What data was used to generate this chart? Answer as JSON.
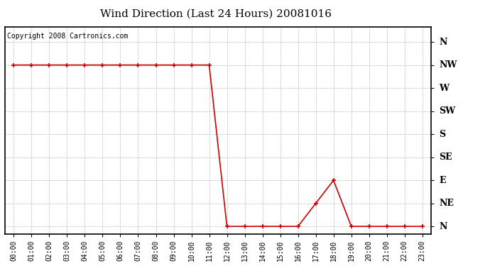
{
  "title": "Wind Direction (Last 24 Hours) 20081016",
  "copyright": "Copyright 2008 Cartronics.com",
  "line_color": "#cc0000",
  "bg_color": "#ffffff",
  "grid_color": "#bbbbbb",
  "marker": "+",
  "marker_size": 5,
  "line_width": 1.2,
  "hours": [
    0,
    1,
    2,
    3,
    4,
    5,
    6,
    7,
    8,
    9,
    10,
    11,
    12,
    13,
    14,
    15,
    16,
    17,
    18,
    19,
    20,
    21,
    22,
    23
  ],
  "values": [
    315,
    315,
    315,
    315,
    315,
    315,
    315,
    315,
    315,
    315,
    315,
    315,
    0,
    0,
    0,
    0,
    0,
    45,
    90,
    0,
    0,
    0,
    0,
    0
  ],
  "ytick_labels": [
    "N",
    "NW",
    "W",
    "SW",
    "S",
    "SE",
    "E",
    "NE",
    "N"
  ],
  "ytick_values": [
    360,
    315,
    270,
    225,
    180,
    135,
    90,
    45,
    0
  ],
  "ylim": [
    -15,
    390
  ],
  "xlim": [
    -0.5,
    23.5
  ],
  "xtick_labels": [
    "00:00",
    "01:00",
    "02:00",
    "03:00",
    "04:00",
    "05:00",
    "06:00",
    "07:00",
    "08:00",
    "09:00",
    "10:00",
    "11:00",
    "12:00",
    "13:00",
    "14:00",
    "15:00",
    "16:00",
    "17:00",
    "18:00",
    "19:00",
    "20:00",
    "21:00",
    "22:00",
    "23:00"
  ],
  "title_fontsize": 11,
  "copyright_fontsize": 7,
  "ytick_fontsize": 9,
  "xtick_fontsize": 7
}
